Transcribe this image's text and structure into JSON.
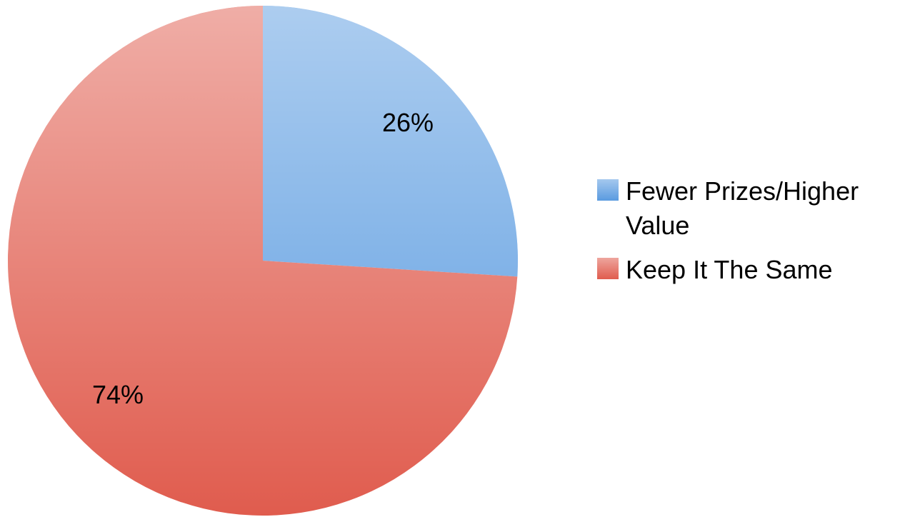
{
  "chart_data": {
    "type": "pie",
    "categories": [
      "Fewer Prizes/Higher Value",
      "Keep It The Same"
    ],
    "values": [
      26,
      74
    ],
    "value_labels": [
      "26%",
      "74%"
    ],
    "colors": [
      "#5a9be0",
      "#e05c4e"
    ],
    "legend": "right"
  }
}
